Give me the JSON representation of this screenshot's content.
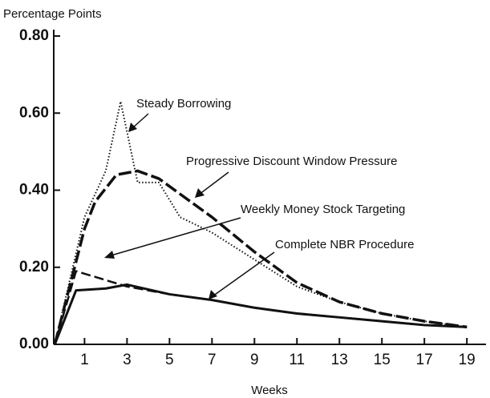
{
  "chart_data": {
    "type": "line",
    "y_label": "Percentage Points",
    "x_label": "Weeks",
    "xlim": [
      -0.45,
      19.9
    ],
    "ylim": [
      0,
      0.8
    ],
    "xticks": [
      1,
      3,
      5,
      7,
      9,
      11,
      13,
      15,
      17,
      19
    ],
    "yticks": [
      {
        "value": 0,
        "label": "0.00"
      },
      {
        "value": 0.2,
        "label": "0.20"
      },
      {
        "value": 0.4,
        "label": "0.40"
      },
      {
        "value": 0.6,
        "label": "0.60"
      },
      {
        "value": 0.8,
        "label": "0.80"
      }
    ],
    "series": [
      {
        "name": "Steady Borrowing",
        "color": "#111111",
        "style": "dotted",
        "x": [
          -0.4,
          1,
          2,
          2.7,
          3.5,
          4.5,
          5.5,
          7,
          9,
          11,
          13,
          15,
          17,
          19
        ],
        "values": [
          0,
          0.33,
          0.45,
          0.63,
          0.42,
          0.42,
          0.33,
          0.29,
          0.22,
          0.15,
          0.11,
          0.08,
          0.06,
          0.045
        ]
      },
      {
        "name": "Progressive Discount Window Pressure",
        "color": "#111111",
        "style": "dashed",
        "x": [
          -0.4,
          1,
          1.5,
          2.5,
          3.5,
          4.5,
          6,
          7,
          9,
          11,
          13,
          15,
          17,
          19
        ],
        "values": [
          0,
          0.3,
          0.37,
          0.44,
          0.45,
          0.43,
          0.37,
          0.33,
          0.24,
          0.16,
          0.11,
          0.08,
          0.06,
          0.045
        ]
      },
      {
        "name": "Weekly Money Stock Targeting",
        "color": "#111111",
        "style": "dashed-light",
        "x": [
          -0.4,
          0.6,
          3,
          5,
          7,
          9,
          11,
          13,
          15,
          17,
          19
        ],
        "values": [
          0,
          0.19,
          0.15,
          0.13,
          0.115,
          0.095,
          0.08,
          0.07,
          0.06,
          0.05,
          0.045
        ]
      },
      {
        "name": "Complete NBR Procedure",
        "color": "#111111",
        "style": "solid",
        "x": [
          -0.4,
          0.6,
          2,
          3,
          5,
          7,
          9,
          11,
          13,
          15,
          17,
          19
        ],
        "values": [
          0,
          0.14,
          0.145,
          0.155,
          0.13,
          0.115,
          0.095,
          0.08,
          0.07,
          0.06,
          0.05,
          0.045
        ]
      }
    ]
  }
}
